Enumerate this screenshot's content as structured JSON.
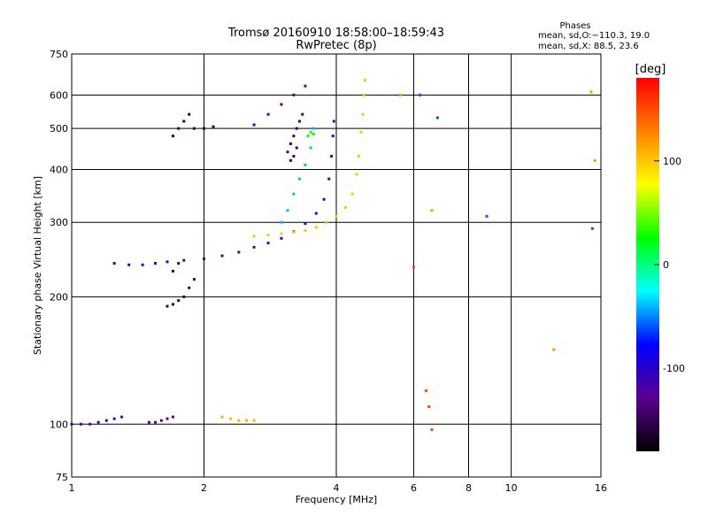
{
  "chart_data": {
    "type": "scatter",
    "title": "Tromsø 20160910 18:58:00–18:59:43",
    "subtitle": "RwPretec (8p)",
    "xlabel": "Frequency [MHz]",
    "ylabel": "Stationary phase Virtual Height [km]",
    "x_scale": "log",
    "y_scale": "log",
    "xlim": [
      1,
      16
    ],
    "ylim": [
      75,
      750
    ],
    "x_ticks": [
      1,
      2,
      4,
      6,
      8,
      10,
      16
    ],
    "y_ticks": [
      75,
      100,
      200,
      300,
      400,
      500,
      600,
      750
    ],
    "grid": true,
    "phase_info": {
      "heading": "Phases",
      "line1": "mean, sd,O:−110.3, 19.0",
      "line2": "mean, sd,X:  88.5, 23.6"
    },
    "colorbar": {
      "label": "[deg]",
      "range": [
        -180,
        180
      ],
      "ticks": [
        100,
        0,
        -100
      ],
      "colormap": "rainbow",
      "colors": [
        "#000000",
        "#5a0090",
        "#0000ff",
        "#00ffff",
        "#00ff00",
        "#ffff00",
        "#ff8000",
        "#ff0000"
      ]
    },
    "traces": [
      {
        "name": "",
        "phase": -120,
        "points": [
          [
            1.0,
            100
          ],
          [
            1.05,
            100
          ],
          [
            1.1,
            100
          ],
          [
            1.15,
            101
          ],
          [
            1.2,
            102
          ],
          [
            1.25,
            103
          ],
          [
            1.3,
            104
          ]
        ]
      },
      {
        "name": "",
        "phase": -120,
        "points": [
          [
            1.5,
            101
          ],
          [
            1.55,
            101
          ],
          [
            1.6,
            102
          ],
          [
            1.65,
            103
          ],
          [
            1.7,
            104
          ]
        ]
      },
      {
        "name": "",
        "phase": 110,
        "points": [
          [
            2.2,
            104
          ],
          [
            2.3,
            103
          ],
          [
            2.4,
            102
          ],
          [
            2.5,
            102
          ],
          [
            2.6,
            102
          ]
        ]
      },
      {
        "name": "",
        "phase": -110,
        "points": [
          [
            1.25,
            240
          ],
          [
            1.35,
            238
          ],
          [
            1.45,
            238
          ],
          [
            1.55,
            240
          ],
          [
            1.65,
            242
          ],
          [
            1.8,
            244
          ],
          [
            2.0,
            246
          ],
          [
            2.2,
            250
          ],
          [
            2.4,
            255
          ],
          [
            2.6,
            262
          ],
          [
            2.8,
            268
          ],
          [
            3.0,
            275
          ],
          [
            3.2,
            285
          ],
          [
            3.4,
            298
          ],
          [
            3.6,
            315
          ],
          [
            3.75,
            340
          ],
          [
            3.85,
            380
          ],
          [
            3.9,
            430
          ],
          [
            3.93,
            480
          ],
          [
            3.95,
            520
          ]
        ]
      },
      {
        "name": "",
        "phase": 100,
        "points": [
          [
            2.6,
            278
          ],
          [
            2.8,
            280
          ],
          [
            3.0,
            282
          ],
          [
            3.2,
            284
          ],
          [
            3.4,
            287
          ],
          [
            3.6,
            292
          ],
          [
            3.8,
            300
          ],
          [
            4.0,
            310
          ],
          [
            4.2,
            325
          ],
          [
            4.35,
            350
          ],
          [
            4.45,
            390
          ],
          [
            4.5,
            430
          ],
          [
            4.55,
            490
          ],
          [
            4.6,
            540
          ],
          [
            4.62,
            600
          ],
          [
            4.65,
            650
          ]
        ]
      },
      {
        "name": "",
        "phase": -40,
        "points": [
          [
            3.0,
            300
          ],
          [
            3.1,
            320
          ],
          [
            3.2,
            350
          ],
          [
            3.3,
            380
          ],
          [
            3.4,
            410
          ],
          [
            3.5,
            450
          ],
          [
            3.55,
            500
          ]
        ]
      },
      {
        "name": "",
        "phase": -120,
        "points": [
          [
            2.6,
            510
          ],
          [
            2.8,
            540
          ],
          [
            3.0,
            570
          ],
          [
            3.2,
            600
          ],
          [
            3.4,
            630
          ]
        ]
      },
      {
        "name": "",
        "phase": -140,
        "points": [
          [
            3.1,
            440
          ],
          [
            3.15,
            460
          ],
          [
            3.2,
            480
          ],
          [
            3.25,
            500
          ],
          [
            3.3,
            520
          ],
          [
            3.35,
            540
          ],
          [
            3.2,
            430
          ],
          [
            3.15,
            420
          ],
          [
            3.25,
            450
          ]
        ]
      },
      {
        "name": "",
        "phase": -150,
        "points": [
          [
            1.7,
            480
          ],
          [
            1.75,
            500
          ],
          [
            1.8,
            520
          ],
          [
            1.85,
            540
          ],
          [
            1.9,
            500
          ],
          [
            2.0,
            500
          ],
          [
            2.1,
            505
          ]
        ]
      },
      {
        "name": "",
        "phase": -150,
        "points": [
          [
            1.65,
            190
          ],
          [
            1.7,
            192
          ],
          [
            1.75,
            196
          ],
          [
            1.8,
            200
          ],
          [
            1.85,
            210
          ],
          [
            1.9,
            220
          ],
          [
            1.7,
            230
          ],
          [
            1.75,
            240
          ]
        ]
      },
      {
        "name": "",
        "phase": 30,
        "points": [
          [
            3.45,
            480
          ],
          [
            3.5,
            490
          ],
          [
            3.55,
            485
          ]
        ]
      },
      {
        "name": "",
        "phase": -60,
        "points": [
          [
            6.2,
            600
          ],
          [
            6.8,
            530
          ],
          [
            8.8,
            310
          ],
          [
            15.3,
            290
          ]
        ]
      },
      {
        "name": "",
        "phase": 150,
        "points": [
          [
            6.0,
            235
          ],
          [
            6.5,
            110
          ],
          [
            6.6,
            97
          ],
          [
            6.4,
            120
          ]
        ]
      },
      {
        "name": "",
        "phase": 120,
        "points": [
          [
            5.6,
            600
          ],
          [
            6.6,
            320
          ],
          [
            12.5,
            150
          ],
          [
            15.5,
            420
          ],
          [
            15.2,
            610
          ]
        ]
      }
    ]
  }
}
